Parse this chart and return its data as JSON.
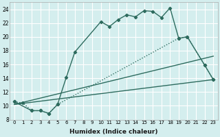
{
  "xlabel": "Humidex (Indice chaleur)",
  "bg_color": "#d4eeee",
  "grid_color": "#ffffff",
  "line_color": "#2d6b5e",
  "xlim": [
    -0.5,
    23.5
  ],
  "ylim": [
    8,
    25
  ],
  "xticks": [
    0,
    1,
    2,
    3,
    4,
    5,
    6,
    7,
    8,
    9,
    10,
    11,
    12,
    13,
    14,
    15,
    16,
    17,
    18,
    19,
    20,
    21,
    22,
    23
  ],
  "yticks": [
    8,
    10,
    12,
    14,
    16,
    18,
    20,
    22,
    24
  ],
  "series1_x": [
    0,
    2,
    3,
    4,
    5,
    6,
    7,
    10,
    11,
    12,
    13,
    14,
    15,
    16,
    17,
    18,
    19,
    20,
    22,
    23
  ],
  "series1_y": [
    10.6,
    9.3,
    9.3,
    8.9,
    10.2,
    14.1,
    17.8,
    22.2,
    21.5,
    22.5,
    23.2,
    22.9,
    23.8,
    23.7,
    22.8,
    24.2,
    19.8,
    20.0,
    15.9,
    13.8
  ],
  "series2_x": [
    0,
    1,
    2,
    3,
    4,
    5,
    19,
    20,
    22,
    23
  ],
  "series2_y": [
    10.6,
    10.4,
    9.3,
    9.3,
    8.9,
    10.2,
    19.8,
    20.0,
    15.9,
    13.8
  ],
  "line1_x": [
    0,
    23
  ],
  "line1_y": [
    10.2,
    13.8
  ],
  "line2_x": [
    0,
    23
  ],
  "line2_y": [
    10.2,
    17.2
  ]
}
